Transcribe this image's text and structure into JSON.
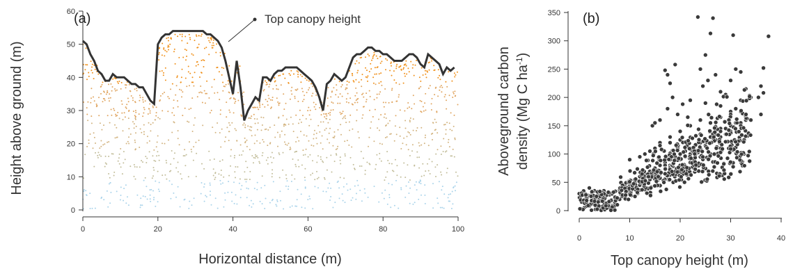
{
  "chart_data": [
    {
      "type": "scatter",
      "panel_label": "(a)",
      "xlabel": "Horizontal distance (m)",
      "ylabel": "Height above ground (m)",
      "xlim": [
        0,
        100
      ],
      "ylim": [
        0,
        60
      ],
      "x_ticks": [
        "0",
        "20",
        "40",
        "60",
        "80",
        "100"
      ],
      "y_ticks": [
        "0",
        "10",
        "20",
        "30",
        "40",
        "50",
        "60"
      ],
      "annotation": "Top canopy height",
      "grid": false,
      "color_gradient": [
        "#a9d3ea",
        "#c8b98a",
        "#dcae6a",
        "#f0901a"
      ],
      "canopy_line_color": "#333333",
      "series": [
        {
          "x": [
            0,
            1,
            2,
            3,
            4,
            5,
            6,
            7,
            8,
            9,
            10,
            11,
            12,
            13,
            14,
            15,
            16,
            17,
            18,
            19,
            20,
            21,
            22,
            23,
            24,
            25,
            26,
            27,
            28,
            29,
            30,
            31,
            32,
            33,
            34,
            35,
            36,
            37,
            38,
            39,
            40,
            41,
            42,
            43,
            44,
            45,
            46,
            47,
            48,
            49,
            50,
            51,
            52,
            53,
            54,
            55,
            56,
            57,
            58,
            59,
            60,
            61,
            62,
            63,
            64,
            65,
            66,
            67,
            68,
            69,
            70,
            71,
            72,
            73,
            74,
            75,
            76,
            77,
            78,
            79,
            80,
            81,
            82,
            83,
            84,
            85,
            86,
            87,
            88,
            89,
            90,
            91,
            92,
            93,
            94,
            95,
            96,
            97,
            98,
            99
          ],
          "y": [
            51,
            50,
            47,
            45,
            42,
            41,
            39,
            39,
            41,
            40,
            40,
            40,
            39,
            38,
            38,
            37,
            37,
            35,
            33,
            32,
            50,
            52,
            53,
            53,
            54,
            54,
            54,
            54,
            54,
            54,
            54,
            54,
            54,
            53,
            53,
            52,
            51,
            49,
            45,
            40,
            35,
            45,
            37,
            27,
            30,
            32,
            34,
            33,
            40,
            40,
            39,
            41,
            42,
            42,
            43,
            43,
            43,
            43,
            42,
            41,
            40,
            39,
            37,
            34,
            30,
            38,
            39,
            41,
            40,
            39,
            40,
            43,
            46,
            47,
            47,
            48,
            49,
            49,
            48,
            48,
            47,
            47,
            46,
            45,
            45,
            45,
            46,
            47,
            47,
            46,
            44,
            43,
            47,
            46,
            45,
            44,
            41,
            43,
            42,
            43
          ]
        }
      ]
    },
    {
      "type": "scatter",
      "panel_label": "(b)",
      "xlabel": "Top canopy height (m)",
      "ylabel": "Aboveground carbon",
      "ylabel_line2": "density (Mg C ha",
      "ylabel_sup": "-1",
      "ylabel_end": ")",
      "xlim": [
        0,
        40
      ],
      "ylim": [
        0,
        350
      ],
      "x_ticks": [
        "0",
        "10",
        "20",
        "30",
        "40"
      ],
      "y_ticks": [
        "0",
        "50",
        "100",
        "150",
        "200",
        "250",
        "300",
        "350"
      ],
      "grid": false,
      "point_color": "#3a3a3a",
      "series": [
        {
          "x": [
            23.5,
            26.5,
            26,
            30.5,
            37.5,
            36.5,
            36,
            36.5,
            35.5,
            17,
            17.5,
            18,
            19,
            22,
            24,
            25,
            20.5,
            21.5,
            19.5,
            16,
            14.5,
            15,
            17.5,
            18.5,
            24.5,
            25.5,
            27,
            28,
            29,
            30,
            31,
            32,
            33,
            34,
            25,
            28,
            30,
            32,
            33,
            16,
            18,
            20,
            22,
            24,
            26,
            28,
            30,
            31,
            32,
            33,
            34,
            10,
            12,
            13,
            14,
            15,
            16,
            18,
            20,
            22,
            24,
            26,
            28,
            30,
            32,
            33,
            8,
            9,
            10,
            11,
            12,
            13,
            14,
            15,
            16,
            17,
            18,
            19,
            20,
            21,
            22,
            23,
            24,
            25,
            26,
            27,
            28,
            29,
            30,
            31,
            1,
            2,
            3,
            4,
            5,
            6,
            7,
            8,
            9,
            10,
            0.5,
            1.5,
            2.5,
            3.5,
            4.5,
            5.5,
            6.5,
            7.5,
            1,
            3,
            5,
            7,
            2,
            4,
            6,
            12,
            14,
            16,
            18,
            20,
            22,
            24,
            26,
            28,
            10,
            11,
            13,
            15,
            17,
            19,
            21,
            23,
            25,
            27,
            29,
            31,
            8,
            10,
            12,
            14,
            16,
            18,
            20,
            22,
            24,
            26,
            28,
            30,
            32,
            34,
            36
          ],
          "y": [
            342,
            340,
            313,
            310,
            308,
            252,
            220,
            208,
            200,
            248,
            240,
            225,
            258,
            195,
            250,
            275,
            188,
            165,
            170,
            160,
            150,
            155,
            180,
            200,
            220,
            230,
            240,
            210,
            205,
            230,
            250,
            245,
            215,
            200,
            190,
            185,
            175,
            195,
            170,
            120,
            130,
            140,
            150,
            160,
            155,
            165,
            170,
            180,
            175,
            165,
            160,
            90,
            95,
            100,
            105,
            110,
            115,
            120,
            125,
            130,
            135,
            140,
            145,
            150,
            155,
            160,
            40,
            45,
            50,
            55,
            60,
            65,
            70,
            75,
            80,
            85,
            90,
            95,
            100,
            105,
            110,
            115,
            120,
            125,
            130,
            135,
            140,
            145,
            150,
            155,
            5,
            10,
            15,
            20,
            25,
            15,
            10,
            20,
            25,
            30,
            3,
            8,
            12,
            6,
            18,
            14,
            9,
            22,
            30,
            35,
            25,
            15,
            40,
            28,
            32,
            45,
            55,
            65,
            70,
            80,
            85,
            95,
            100,
            110,
            45,
            50,
            60,
            70,
            80,
            90,
            95,
            105,
            115,
            125,
            135,
            145,
            35,
            40,
            50,
            60,
            70,
            80,
            90,
            100,
            110,
            120,
            130,
            140,
            150,
            160,
            170
          ]
        }
      ]
    }
  ]
}
